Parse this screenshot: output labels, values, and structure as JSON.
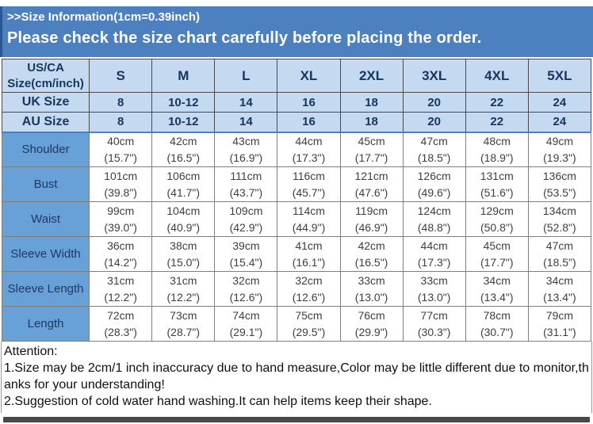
{
  "banner": {
    "line1": ">>Size Information(1cm=0.39inch)",
    "line2": "Please check the size chart carefully before placing the order."
  },
  "table": {
    "corner": {
      "line1": "US/CA",
      "line2": "Size(cm/inch)"
    },
    "size_headers": [
      "S",
      "M",
      "L",
      "XL",
      "2XL",
      "3XL",
      "4XL",
      "5XL"
    ],
    "size_rows": [
      {
        "label": "UK Size",
        "values": [
          "8",
          "10-12",
          "14",
          "16",
          "18",
          "20",
          "22",
          "24"
        ]
      },
      {
        "label": "AU Size",
        "values": [
          "8",
          "10-12",
          "14",
          "16",
          "18",
          "20",
          "22",
          "24"
        ]
      }
    ],
    "measure_rows": [
      {
        "label": "Shoulder",
        "cm": [
          "40cm",
          "42cm",
          "43cm",
          "44cm",
          "45cm",
          "47cm",
          "48cm",
          "49cm"
        ],
        "inch": [
          "(15.7\")",
          "(16.5\")",
          "(16.9\")",
          "(17.3\")",
          "(17.7\")",
          "(18.5\")",
          "(18.9\")",
          "(19.3\")"
        ]
      },
      {
        "label": "Bust",
        "cm": [
          "101cm",
          "106cm",
          "111cm",
          "116cm",
          "121cm",
          "126cm",
          "131cm",
          "136cm"
        ],
        "inch": [
          "(39.8\")",
          "(41.7\")",
          "(43.7\")",
          "(45.7\")",
          "(47.6\")",
          "(49.6\")",
          "(51.6\")",
          "(53.5\")"
        ]
      },
      {
        "label": "Waist",
        "cm": [
          "99cm",
          "104cm",
          "109cm",
          "114cm",
          "119cm",
          "124cm",
          "129cm",
          "134cm"
        ],
        "inch": [
          "(39.0\")",
          "(40.9\")",
          "(42.9\")",
          "(44.9\")",
          "(46.9\")",
          "(48.8\")",
          "(50.8\")",
          "(52.8\")"
        ]
      },
      {
        "label": "Sleeve Width",
        "cm": [
          "36cm",
          "38cm",
          "39cm",
          "41cm",
          "42cm",
          "44cm",
          "45cm",
          "47cm"
        ],
        "inch": [
          "(14.2\")",
          "(15.0\")",
          "(15.4\")",
          "(16.1\")",
          "(16.5\")",
          "(17.3\")",
          "(17.7\")",
          "(18.5\")"
        ]
      },
      {
        "label": "Sleeve Length",
        "cm": [
          "31cm",
          "31cm",
          "32cm",
          "32cm",
          "33cm",
          "33cm",
          "34cm",
          "34cm"
        ],
        "inch": [
          "(12.2\")",
          "(12.2\")",
          "(12.6\")",
          "(12.6\")",
          "(13.0\")",
          "(13.0\")",
          "(13.4\")",
          "(13.4\")"
        ]
      },
      {
        "label": "Length",
        "cm": [
          "72cm",
          "73cm",
          "74cm",
          "75cm",
          "76cm",
          "77cm",
          "78cm",
          "79cm"
        ],
        "inch": [
          "(28.3\")",
          "(28.7\")",
          "(29.1\")",
          "(29.5\")",
          "(29.9\")",
          "(30.3\")",
          "(30.7\")",
          "(31.1\")"
        ]
      }
    ]
  },
  "attention": {
    "title": "Attention:",
    "items": [
      "1.Size may be 2cm/1 inch inaccuracy due to hand measure,Color may be little different due to monitor,thanks for your understanding!",
      "2.Suggestion of cold water hand washing.It can help items keep their shape."
    ]
  },
  "colors": {
    "banner_bg": "#4d80be",
    "header_bg": "#c5d9f1",
    "label_bg": "#68a1d8"
  }
}
